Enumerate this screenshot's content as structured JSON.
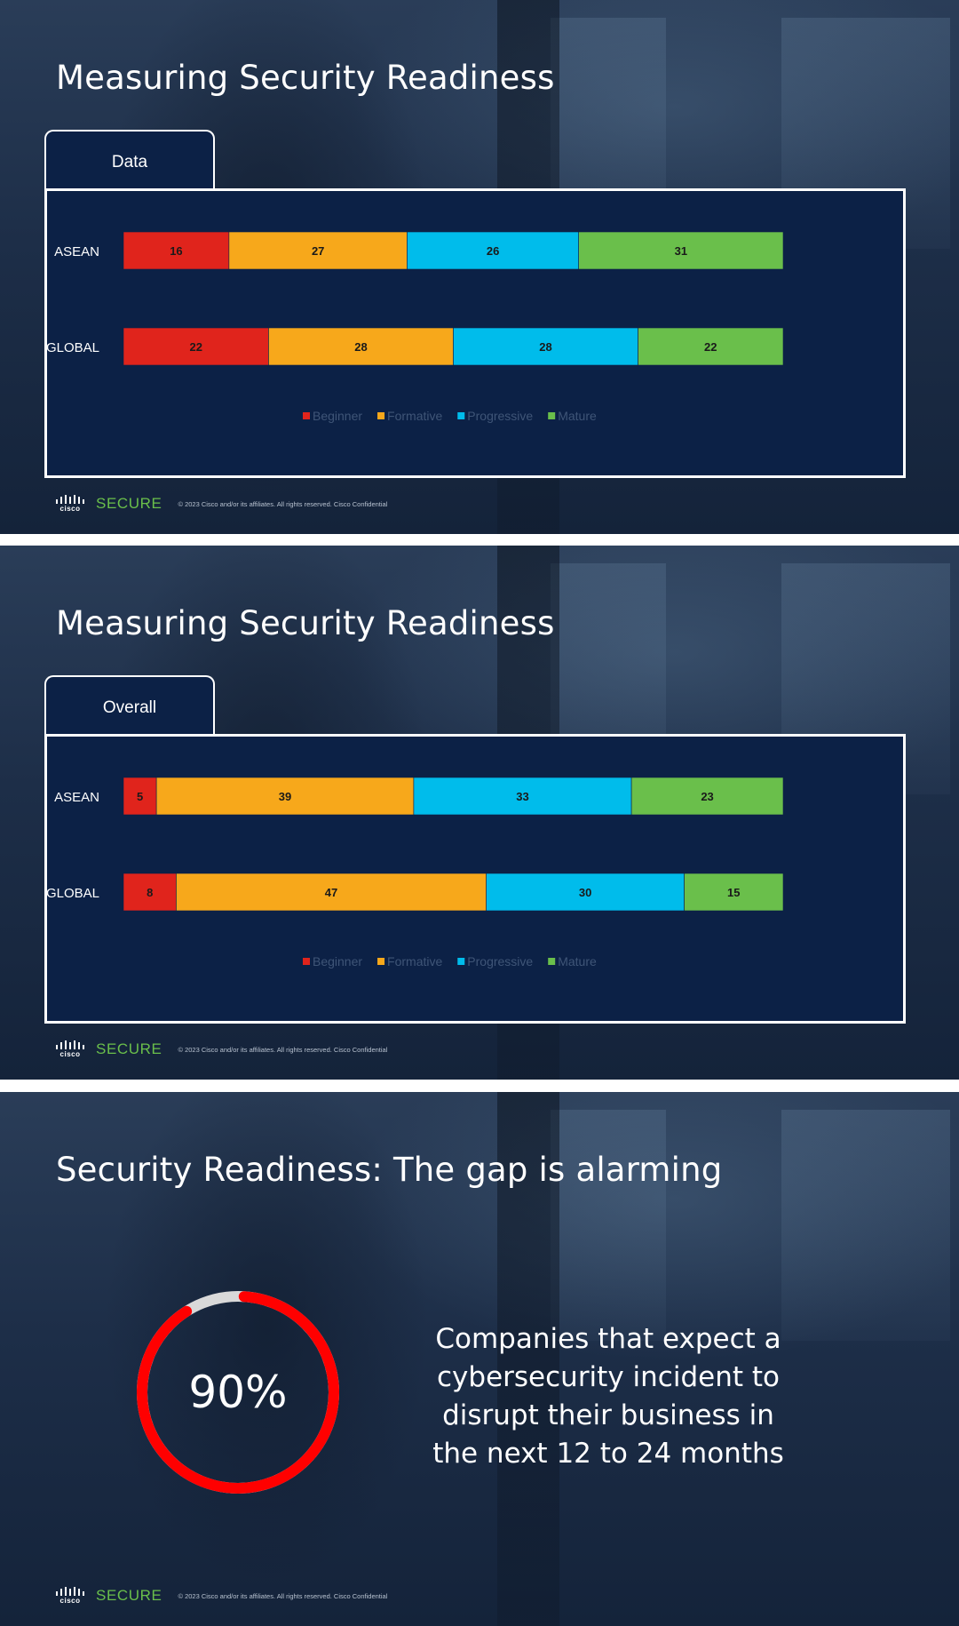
{
  "colors": {
    "beginner": "#e0241c",
    "formative": "#f7a81b",
    "progressive": "#00bceb",
    "mature": "#6abf4b",
    "ring_track": "#d9d9d9",
    "ring_fill": "#ff0000"
  },
  "brand": {
    "secure": "SECURE",
    "cisco": "cisco",
    "copyright": "© 2023 Cisco and/or its affiliates. All rights reserved. Cisco Confidential"
  },
  "slides": [
    {
      "title": "Measuring Security Readiness",
      "tab": "Data"
    },
    {
      "title": "Measuring Security Readiness",
      "tab": "Overall"
    },
    {
      "title": "Security Readiness: The gap is alarming",
      "stat_value": "90%",
      "stat_fraction": 0.9,
      "stat_text": "Companies that expect a cybersecurity incident to disrupt their business in the next 12 to 24 months"
    }
  ],
  "chart_data": [
    {
      "type": "bar",
      "orientation": "horizontal",
      "stacked": true,
      "percent": true,
      "categories": [
        "ASEAN",
        "GLOBAL"
      ],
      "series": [
        {
          "name": "Beginner",
          "values": [
            16,
            22
          ]
        },
        {
          "name": "Formative",
          "values": [
            27,
            28
          ]
        },
        {
          "name": "Progressive",
          "values": [
            26,
            28
          ]
        },
        {
          "name": "Mature",
          "values": [
            31,
            22
          ]
        }
      ],
      "legend_position": "bottom",
      "grid": false
    },
    {
      "type": "bar",
      "orientation": "horizontal",
      "stacked": true,
      "percent": true,
      "categories": [
        "ASEAN",
        "GLOBAL"
      ],
      "series": [
        {
          "name": "Beginner",
          "values": [
            5,
            8
          ]
        },
        {
          "name": "Formative",
          "values": [
            39,
            47
          ]
        },
        {
          "name": "Progressive",
          "values": [
            33,
            30
          ]
        },
        {
          "name": "Mature",
          "values": [
            23,
            15
          ]
        }
      ],
      "legend_position": "bottom",
      "grid": false
    }
  ]
}
